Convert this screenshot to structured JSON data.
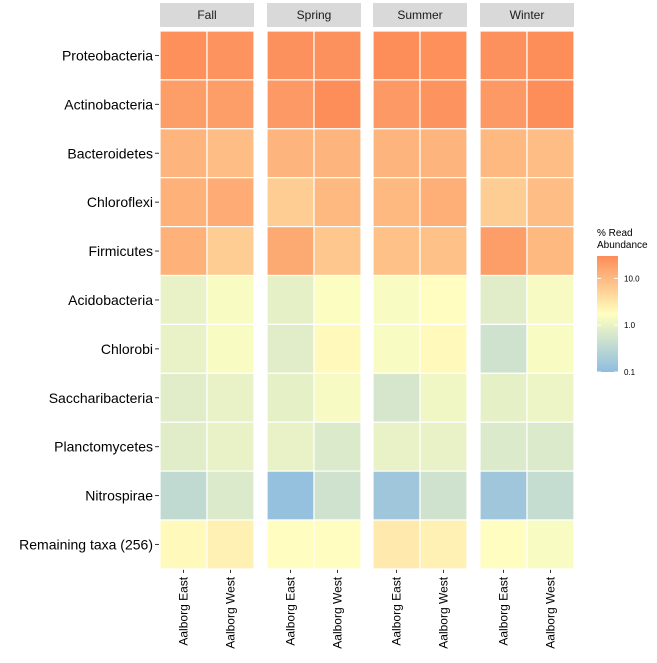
{
  "chart_data": {
    "type": "heatmap",
    "facets": [
      "Fall",
      "Spring",
      "Summer",
      "Winter"
    ],
    "columns": [
      "Aalborg East",
      "Aalborg West"
    ],
    "rows": [
      "Proteobacteria",
      "Actinobacteria",
      "Bacteroidetes",
      "Chloroflexi",
      "Firmicutes",
      "Acidobacteria",
      "Chlorobi",
      "Saccharibacteria",
      "Planctomycetes",
      "Nitrospirae",
      "Remaining taxa (256)"
    ],
    "values": {
      "Fall": {
        "Aalborg East": [
          28,
          20,
          11,
          12,
          12,
          1.0,
          1.0,
          0.8,
          0.8,
          0.35,
          2.0
        ],
        "Aalborg West": [
          25,
          20,
          9,
          14,
          6,
          1.5,
          1.5,
          1.0,
          1.0,
          0.7,
          2.5
        ]
      },
      "Spring": {
        "Aalborg East": [
          27,
          22,
          11,
          6,
          15,
          0.9,
          0.8,
          0.9,
          1.0,
          0.12,
          1.8
        ],
        "Aalborg West": [
          27,
          30,
          11,
          10,
          7,
          1.6,
          2.0,
          1.4,
          0.7,
          0.5,
          1.8
        ]
      },
      "Summer": {
        "Aalborg East": [
          32,
          22,
          11,
          10,
          8,
          1.5,
          1.5,
          0.6,
          1.0,
          0.15,
          3.0
        ],
        "Aalborg West": [
          28,
          25,
          11,
          13,
          8,
          1.8,
          2.0,
          1.2,
          1.0,
          0.5,
          2.5
        ]
      },
      "Winter": {
        "Aalborg East": [
          27,
          22,
          10,
          6,
          20,
          0.8,
          0.5,
          0.9,
          0.7,
          0.15,
          1.8
        ],
        "Aalborg West": [
          30,
          30,
          9,
          9,
          10,
          1.4,
          1.5,
          1.1,
          0.7,
          0.4,
          1.5
        ]
      }
    },
    "legend": {
      "title_line1": "% Read",
      "title_line2": "Abundance",
      "ticks": [
        "10.0",
        "1.0",
        "0.1"
      ],
      "tick_values": [
        10,
        1,
        0.1
      ],
      "scale": "log10",
      "range": [
        0.1,
        30
      ],
      "colors": [
        "#8fbde0",
        "#ffffc0",
        "#fd8d59"
      ]
    }
  }
}
